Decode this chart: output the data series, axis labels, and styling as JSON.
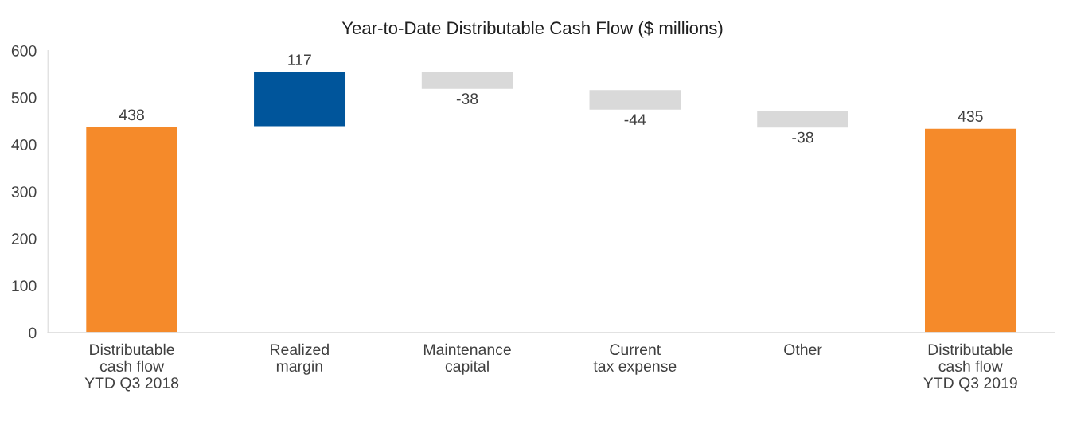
{
  "chart_data": {
    "type": "bar",
    "title": "Year-to-Date Distributable Cash Flow ($ millions)",
    "categories": [
      "Distributable\ncash flow\nYTD Q3 2018",
      "Realized\nmargin",
      "Maintenance\ncapital",
      "Current\ntax expense",
      "Other",
      "Distributable\ncash flow\nYTD Q3 2019"
    ],
    "values": [
      438,
      117,
      -38,
      -44,
      -38,
      435
    ],
    "base": [
      0,
      438,
      555,
      517,
      473,
      0
    ],
    "colors": [
      "#f58a2a",
      "#00559b",
      "#d9d9d9",
      "#d9d9d9",
      "#d9d9d9",
      "#f58a2a"
    ],
    "ylim": [
      0,
      600
    ],
    "yticks": [
      0,
      100,
      200,
      300,
      400,
      500,
      600
    ],
    "data_labels": true,
    "grid": false,
    "legend": false
  }
}
